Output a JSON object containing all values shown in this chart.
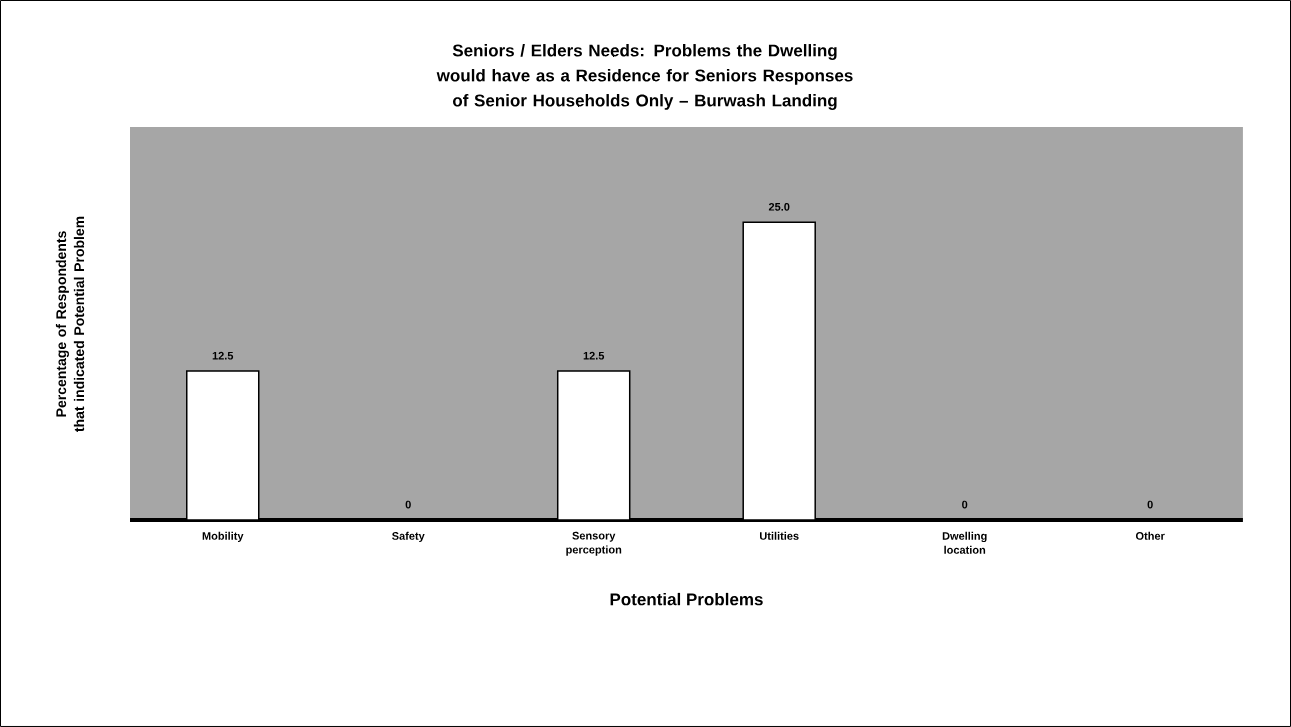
{
  "chart_data": {
    "type": "bar",
    "title": "Seniors / Elders Needs: Problems the Dwelling would have as a Residence for Seniors Responses of Senior Households Only – Burwash Landing",
    "xlabel": "Potential Problems",
    "ylabel": "Percentage of Respondents that indicated Potential Problem",
    "categories": [
      "Mobility",
      "Safety",
      "Sensory perception",
      "Utilities",
      "Dwelling location",
      "Other"
    ],
    "values": [
      12.5,
      0,
      12.5,
      25,
      0,
      0
    ],
    "value_labels": [
      "12.5",
      "0",
      "12.5",
      "25.0",
      "0",
      "0"
    ],
    "color": "#ffffff",
    "ylim": [
      0,
      33
    ],
    "tick_labels": "x"
  }
}
